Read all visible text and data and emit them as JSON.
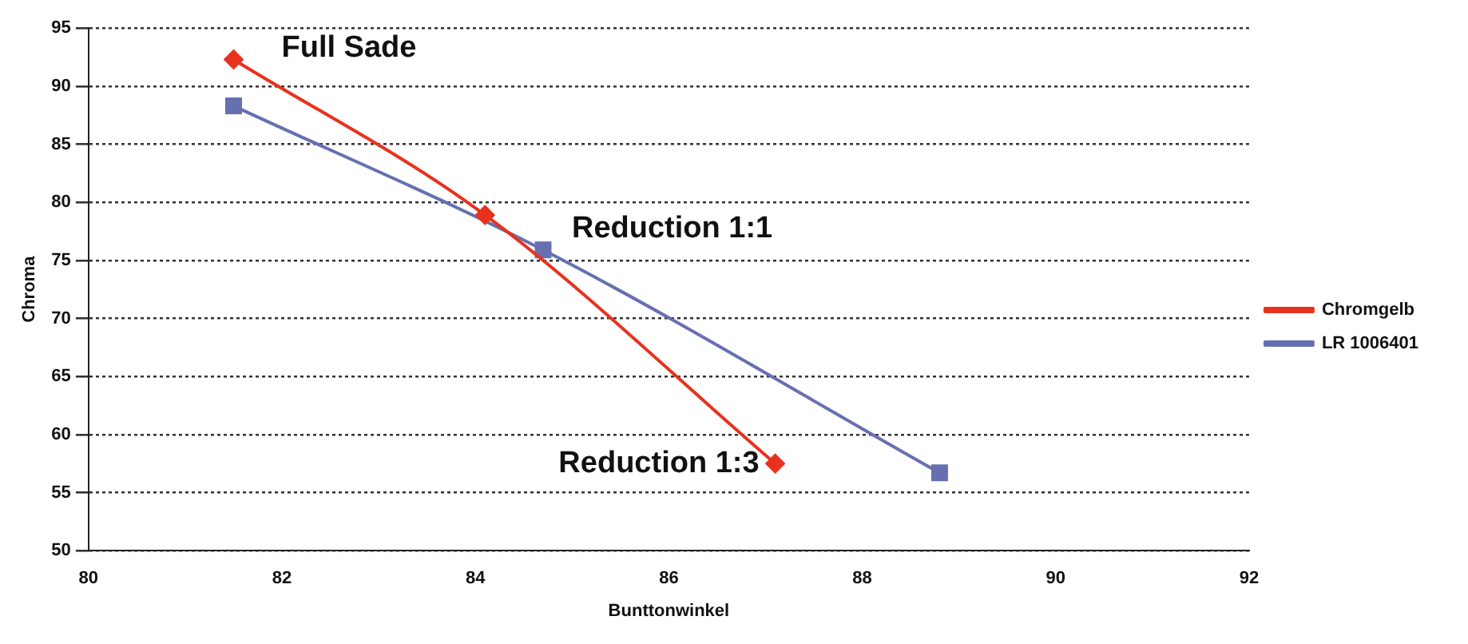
{
  "chart_data": {
    "type": "line",
    "xlabel": "Bunttonwinkel",
    "ylabel": "Chroma",
    "xlim": [
      80,
      92
    ],
    "xticks": [
      80,
      82,
      84,
      86,
      88,
      90,
      92
    ],
    "ylim": [
      50,
      95
    ],
    "yticks": [
      50,
      55,
      60,
      65,
      70,
      75,
      80,
      85,
      90,
      95
    ],
    "grid": "y",
    "legend": "right",
    "series": [
      {
        "name": "Chromgelb",
        "color": "#e8321e",
        "marker": "diamond",
        "x": [
          81.5,
          84.1,
          87.1
        ],
        "values": [
          92.3,
          78.9,
          57.5
        ]
      },
      {
        "name": "LR 1006401",
        "color": "#6670b0",
        "marker": "square",
        "x": [
          81.5,
          84.7,
          88.8
        ],
        "values": [
          88.3,
          75.9,
          56.7
        ]
      }
    ],
    "annotations": [
      {
        "text": "Full Sade",
        "x": 81.5,
        "y": 92.3
      },
      {
        "text": "Reduction 1:1",
        "x": 84.7,
        "y": 75.9
      },
      {
        "text": "Reduction 1:3",
        "x": 87.1,
        "y": 57.5
      }
    ]
  }
}
